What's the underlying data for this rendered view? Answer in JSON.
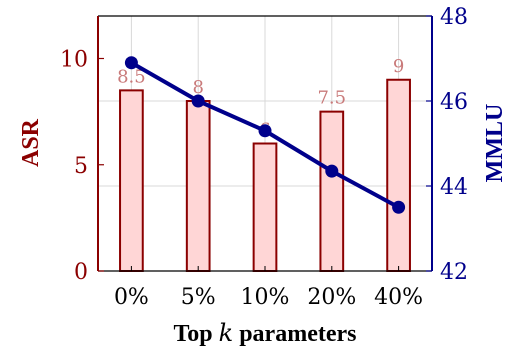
{
  "chart_data": {
    "type": "bar",
    "categories": [
      "0%",
      "5%",
      "10%",
      "20%",
      "40%"
    ],
    "series": [
      {
        "name": "ASR",
        "type": "bar",
        "axis": "left",
        "values": [
          8.5,
          8,
          6,
          7.5,
          9
        ],
        "labels": [
          "8.5",
          "8",
          "6",
          "7.5",
          "9"
        ],
        "color": "#8b0000",
        "fill": "#ffd6d6"
      },
      {
        "name": "MMLU",
        "type": "line",
        "axis": "right",
        "values": [
          46.9,
          46.0,
          45.3,
          44.35,
          43.5
        ],
        "color": "#00008b"
      }
    ],
    "xlabel_prefix": "Top",
    "xlabel_var": "k",
    "xlabel_suffix": "parameters",
    "ylabel_left": "ASR",
    "ylabel_right": "MMLU",
    "ylim_left": [
      0,
      12
    ],
    "ylim_right": [
      42,
      48
    ],
    "yticks_left": [
      "0",
      "5",
      "10"
    ],
    "yticks_right": [
      "42",
      "44",
      "46",
      "48"
    ],
    "grid": true,
    "legend": "none"
  }
}
